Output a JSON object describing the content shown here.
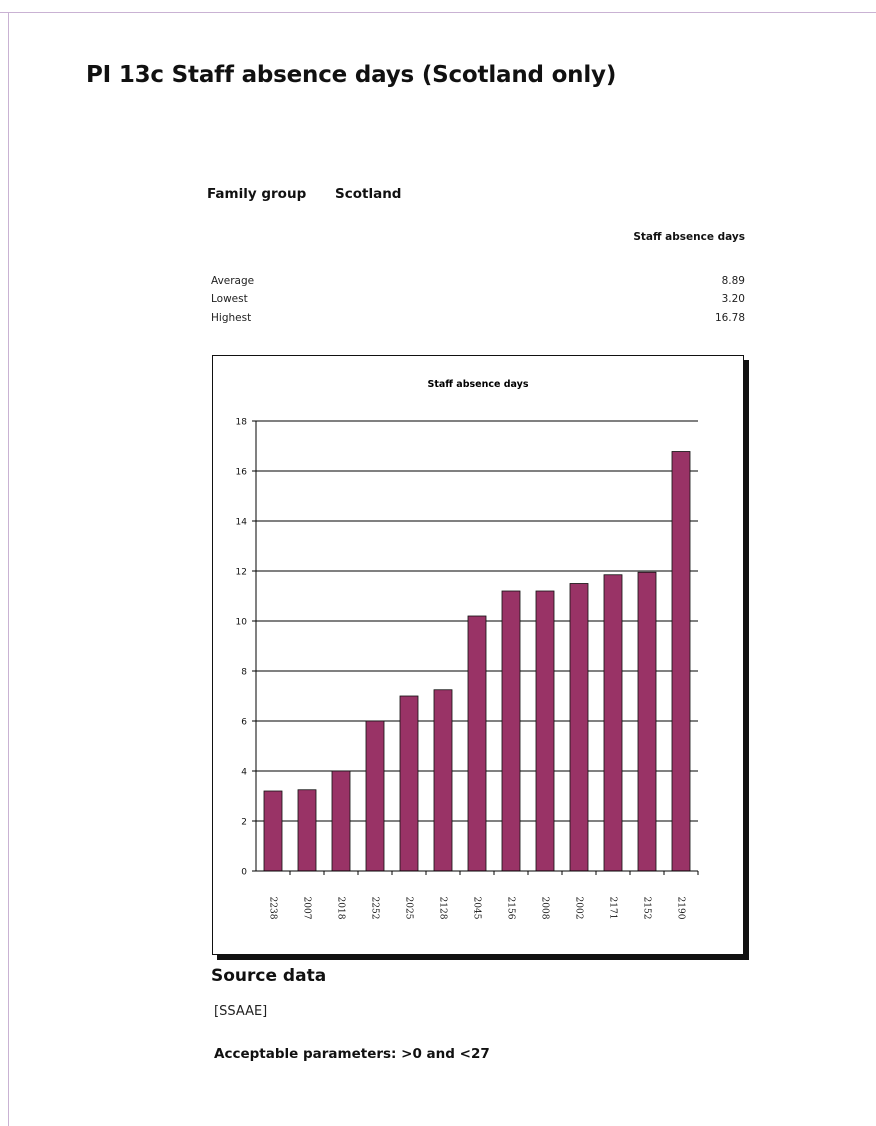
{
  "title": "PI 13c  Staff absence days (Scotland only)",
  "family_group": {
    "label": "Family group",
    "value": "Scotland"
  },
  "stats_table": {
    "column_header": "Staff absence days",
    "rows": [
      {
        "label": "Average",
        "value": "8.89"
      },
      {
        "label": "Lowest",
        "value": "3.20"
      },
      {
        "label": "Highest",
        "value": "16.78"
      }
    ]
  },
  "source": {
    "heading": "Source data",
    "value": "[SSAAE]",
    "parameters": "Acceptable parameters: >0 and <27"
  },
  "colors": {
    "bar": "#993366",
    "bar_outline": "#111111",
    "gridline": "#000000"
  },
  "chart_data": {
    "type": "bar",
    "title": "Staff absence days",
    "categories": [
      "2238",
      "2007",
      "2018",
      "2252",
      "2025",
      "2128",
      "2045",
      "2156",
      "2008",
      "2002",
      "2171",
      "2152",
      "2190"
    ],
    "values": [
      3.2,
      3.25,
      4.0,
      6.0,
      7.0,
      7.25,
      10.2,
      11.2,
      11.2,
      11.5,
      11.85,
      11.95,
      16.78
    ],
    "ylim": [
      0,
      18
    ],
    "yticks": [
      0,
      2,
      4,
      6,
      8,
      10,
      12,
      14,
      16,
      18
    ],
    "grid": true,
    "xlabel": "",
    "ylabel": ""
  }
}
